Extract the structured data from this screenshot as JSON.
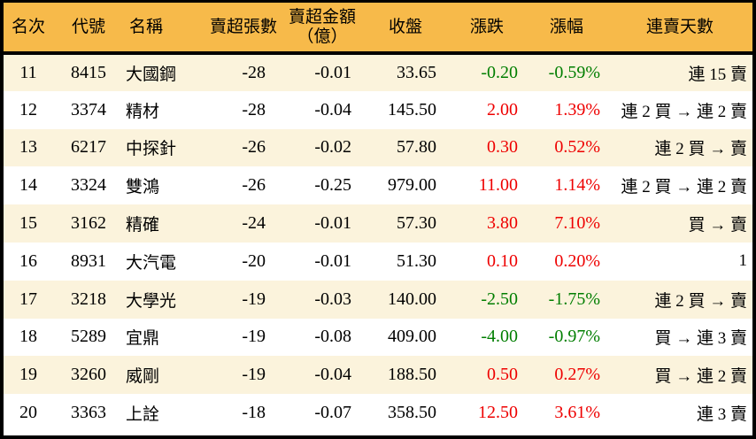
{
  "colors": {
    "header_bg": "#F7BA4A",
    "row_stripe": "#FBF3DC",
    "row_plain": "#FFFFFF",
    "border": "#000000",
    "text": "#000000",
    "up_red": "#EE0000",
    "down_green": "#007E00"
  },
  "header": {
    "rank": "名次",
    "code": "代號",
    "name": "名稱",
    "volume": "賣超張數",
    "amount_line1": "賣超金額",
    "amount_line2": "（億）",
    "close": "收盤",
    "change": "漲跌",
    "pct": "漲幅",
    "streak": "連賣天數"
  },
  "chart_data": {
    "type": "table",
    "columns": [
      "名次",
      "代號",
      "名稱",
      "賣超張數",
      "賣超金額（億）",
      "收盤",
      "漲跌",
      "漲幅",
      "連賣天數"
    ],
    "rows": [
      {
        "rank": "11",
        "code": "8415",
        "name": "大國鋼",
        "volume": "-28",
        "amount": "-0.01",
        "close": "33.65",
        "change": "-0.20",
        "pct": "-0.59%",
        "streak": "連 15 賣",
        "trend": "down"
      },
      {
        "rank": "12",
        "code": "3374",
        "name": "精材",
        "volume": "-28",
        "amount": "-0.04",
        "close": "145.50",
        "change": "2.00",
        "pct": "1.39%",
        "streak": "連 2 買 → 連 2 賣",
        "trend": "up"
      },
      {
        "rank": "13",
        "code": "6217",
        "name": "中探針",
        "volume": "-26",
        "amount": "-0.02",
        "close": "57.80",
        "change": "0.30",
        "pct": "0.52%",
        "streak": "連 2 買 → 賣",
        "trend": "up"
      },
      {
        "rank": "14",
        "code": "3324",
        "name": "雙鴻",
        "volume": "-26",
        "amount": "-0.25",
        "close": "979.00",
        "change": "11.00",
        "pct": "1.14%",
        "streak": "連 2 買 → 連 2 賣",
        "trend": "up"
      },
      {
        "rank": "15",
        "code": "3162",
        "name": "精確",
        "volume": "-24",
        "amount": "-0.01",
        "close": "57.30",
        "change": "3.80",
        "pct": "7.10%",
        "streak": "買 → 賣",
        "trend": "up"
      },
      {
        "rank": "16",
        "code": "8931",
        "name": "大汽電",
        "volume": "-20",
        "amount": "-0.01",
        "close": "51.30",
        "change": "0.10",
        "pct": "0.20%",
        "streak": "1",
        "trend": "up"
      },
      {
        "rank": "17",
        "code": "3218",
        "name": "大學光",
        "volume": "-19",
        "amount": "-0.03",
        "close": "140.00",
        "change": "-2.50",
        "pct": "-1.75%",
        "streak": "連 2 買 → 賣",
        "trend": "down"
      },
      {
        "rank": "18",
        "code": "5289",
        "name": "宜鼎",
        "volume": "-19",
        "amount": "-0.08",
        "close": "409.00",
        "change": "-4.00",
        "pct": "-0.97%",
        "streak": "買 → 連 3 賣",
        "trend": "down"
      },
      {
        "rank": "19",
        "code": "3260",
        "name": "威剛",
        "volume": "-19",
        "amount": "-0.04",
        "close": "188.50",
        "change": "0.50",
        "pct": "0.27%",
        "streak": "買 → 連 2 賣",
        "trend": "up"
      },
      {
        "rank": "20",
        "code": "3363",
        "name": "上詮",
        "volume": "-18",
        "amount": "-0.07",
        "close": "358.50",
        "change": "12.50",
        "pct": "3.61%",
        "streak": "連 3 賣",
        "trend": "up"
      }
    ]
  }
}
